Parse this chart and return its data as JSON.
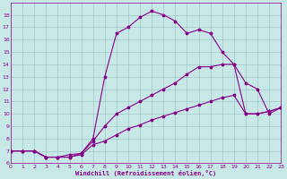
{
  "bg_color": "#c8e8e8",
  "grid_color": "#a0c8c8",
  "line_color": "#880088",
  "xlabel": "Windchill (Refroidissement éolien,°C)",
  "xlim": [
    0,
    23
  ],
  "ylim": [
    6,
    19
  ],
  "xticks": [
    0,
    1,
    2,
    3,
    4,
    5,
    6,
    7,
    8,
    9,
    10,
    11,
    12,
    13,
    14,
    15,
    16,
    17,
    18,
    19,
    20,
    21,
    22,
    23
  ],
  "yticks": [
    6,
    7,
    8,
    9,
    10,
    11,
    12,
    13,
    14,
    15,
    16,
    17,
    18
  ],
  "curve1_x": [
    0,
    1,
    2,
    3,
    4,
    5,
    6,
    7,
    8,
    9,
    10,
    11,
    12,
    13,
    14,
    15,
    16,
    17,
    18,
    19,
    20,
    21,
    22,
    23
  ],
  "curve1_y": [
    7.0,
    7.0,
    7.0,
    6.5,
    6.5,
    6.5,
    6.7,
    7.5,
    7.8,
    8.3,
    8.8,
    9.1,
    9.5,
    9.8,
    10.1,
    10.4,
    10.7,
    11.0,
    11.3,
    11.5,
    10.0,
    10.0,
    10.2,
    10.5
  ],
  "curve2_x": [
    0,
    1,
    2,
    3,
    4,
    5,
    6,
    7,
    8,
    9,
    10,
    11,
    12,
    13,
    14,
    15,
    16,
    17,
    18,
    19,
    20,
    21,
    22,
    23
  ],
  "curve2_y": [
    7.0,
    7.0,
    7.0,
    6.5,
    6.5,
    6.7,
    6.8,
    7.8,
    9.0,
    10.0,
    10.5,
    11.0,
    11.5,
    12.0,
    12.5,
    13.2,
    13.8,
    13.8,
    14.0,
    14.0,
    10.0,
    10.0,
    10.2,
    10.5
  ],
  "curve3_x": [
    0,
    1,
    2,
    3,
    4,
    5,
    6,
    7,
    8,
    9,
    10,
    11,
    12,
    13,
    14,
    15,
    16,
    17,
    18,
    19,
    20,
    21,
    22,
    23
  ],
  "curve3_y": [
    7.0,
    7.0,
    7.0,
    6.5,
    6.5,
    6.5,
    6.8,
    8.0,
    13.0,
    16.5,
    17.0,
    17.8,
    18.3,
    18.0,
    17.5,
    16.5,
    16.8,
    16.5,
    15.0,
    14.0,
    12.5,
    12.0,
    10.0,
    10.5
  ]
}
